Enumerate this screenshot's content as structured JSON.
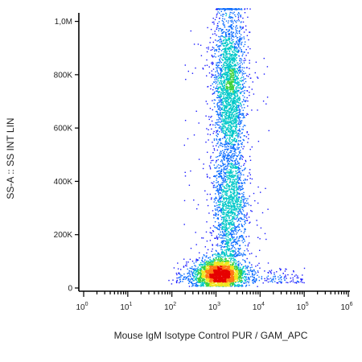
{
  "chart_data": {
    "type": "scatter",
    "subtype": "density-dot-plot",
    "xlabel": "Mouse IgM Isotype Control PUR / GAM_APC",
    "ylabel": "SS-A :: SS INT LIN",
    "x_scale": "log",
    "y_scale": "linear",
    "xlim": [
      1,
      1000000
    ],
    "ylim": [
      0,
      1050000
    ],
    "x_ticks": [
      {
        "base": "10",
        "exp": "0",
        "value": 1
      },
      {
        "base": "10",
        "exp": "1",
        "value": 10
      },
      {
        "base": "10",
        "exp": "2",
        "value": 100
      },
      {
        "base": "10",
        "exp": "3",
        "value": 1000
      },
      {
        "base": "10",
        "exp": "4",
        "value": 10000
      },
      {
        "base": "10",
        "exp": "5",
        "value": 100000
      },
      {
        "base": "10",
        "exp": "6",
        "value": 1000000
      }
    ],
    "y_ticks": [
      {
        "label": "0",
        "value": 0
      },
      {
        "label": "200K",
        "value": 200000
      },
      {
        "label": "400K",
        "value": 400000
      },
      {
        "label": "600K",
        "value": 600000
      },
      {
        "label": "800K",
        "value": 800000
      },
      {
        "label": "1,0M",
        "value": 1000000
      }
    ],
    "populations": [
      {
        "center_x": 1200,
        "center_y": 55000,
        "spread_log_x": 0.28,
        "spread_y": 28000,
        "density": "very high"
      },
      {
        "center_x": 2000,
        "center_y": 750000,
        "spread_log_x": 0.18,
        "spread_y": 160000,
        "density": "high"
      },
      {
        "center_x": 2000,
        "center_y": 300000,
        "spread_log_x": 0.2,
        "spread_y": 120000,
        "density": "medium"
      }
    ],
    "density_colors": [
      "#1a1aff",
      "#0a6cff",
      "#00c8c8",
      "#3cd23c",
      "#f0e61e",
      "#ff7814",
      "#e60000"
    ],
    "grid": false
  }
}
